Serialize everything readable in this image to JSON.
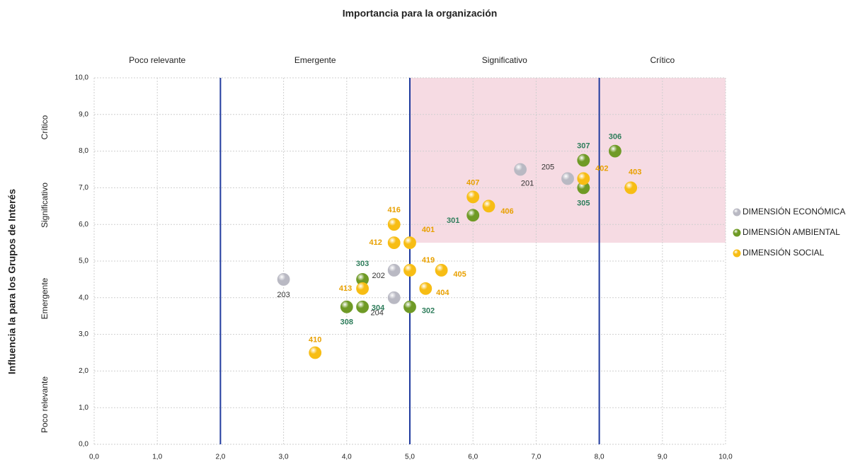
{
  "chart_data": {
    "type": "scatter",
    "title": "Importancia para la organización",
    "y_label": "Influencia la para los Grupos de Interés",
    "column_zones": [
      "Poco relevante",
      "Emergente",
      "Significativo",
      "Crítico"
    ],
    "row_zones": [
      "Crítico",
      "Significativo",
      "Emergente",
      "Poco relevante"
    ],
    "threshold_lines": [
      2,
      5,
      8
    ],
    "highlight_region": {
      "x": [
        5,
        10
      ],
      "y": [
        5.5,
        10
      ]
    },
    "xlim": [
      0,
      10
    ],
    "ylim": [
      0,
      10
    ],
    "xticks": [
      {
        "value": 0,
        "label": "0,0"
      },
      {
        "value": 1,
        "label": "1,0"
      },
      {
        "value": 2,
        "label": "2,0"
      },
      {
        "value": 3,
        "label": "3,0"
      },
      {
        "value": 4,
        "label": "4,0"
      },
      {
        "value": 5,
        "label": "5,0"
      },
      {
        "value": 6,
        "label": "6,0"
      },
      {
        "value": 7,
        "label": "7,0"
      },
      {
        "value": 8,
        "label": "8,0"
      },
      {
        "value": 9,
        "label": "9,0"
      },
      {
        "value": 10,
        "label": "10,0"
      }
    ],
    "yticks": [
      {
        "value": 0,
        "label": "0,0"
      },
      {
        "value": 1,
        "label": "1,0"
      },
      {
        "value": 2,
        "label": "2,0"
      },
      {
        "value": 3,
        "label": "3,0"
      },
      {
        "value": 4,
        "label": "4,0"
      },
      {
        "value": 5,
        "label": "5,0"
      },
      {
        "value": 6,
        "label": "6,0"
      },
      {
        "value": 7,
        "label": "7,0"
      },
      {
        "value": 8,
        "label": "8,0"
      },
      {
        "value": 9,
        "label": "9,0"
      },
      {
        "value": 10,
        "label": "10,0"
      }
    ],
    "grid": true,
    "legend": "right",
    "series": [
      {
        "name": "DIMENSIÓN ECONÓMICA",
        "color": "#b9b9c3",
        "label_color": "#333333",
        "labels": [
          "203",
          "202",
          "204",
          "201",
          "205"
        ],
        "x": [
          3.0,
          4.75,
          4.75,
          6.75,
          7.5
        ],
        "values": [
          4.5,
          4.75,
          4.0,
          7.5,
          7.25
        ]
      },
      {
        "name": "DIMENSIÓN AMBIENTAL",
        "color": "#6f9a26",
        "label_color": "#2e7d5b",
        "labels": [
          "303",
          "304",
          "308",
          "302",
          "301",
          "305",
          "307",
          "306"
        ],
        "x": [
          4.25,
          4.25,
          4.0,
          5.0,
          6.0,
          7.75,
          7.75,
          8.25
        ],
        "values": [
          4.5,
          3.75,
          3.75,
          3.75,
          6.25,
          7.0,
          7.75,
          8.0
        ]
      },
      {
        "name": "DIMENSIÓN SOCIAL",
        "color": "#f7bd14",
        "label_color": "#e8a000",
        "labels": [
          "416",
          "412",
          "401",
          "419",
          "405",
          "413",
          "404",
          "410",
          "407",
          "406",
          "402",
          "403"
        ],
        "x": [
          4.75,
          4.75,
          5.0,
          5.0,
          5.5,
          4.25,
          5.25,
          3.5,
          6.0,
          6.25,
          7.75,
          8.5
        ],
        "values": [
          6.0,
          5.5,
          5.5,
          4.75,
          4.75,
          4.25,
          4.25,
          2.5,
          6.75,
          6.5,
          7.25,
          7.0
        ]
      }
    ]
  }
}
